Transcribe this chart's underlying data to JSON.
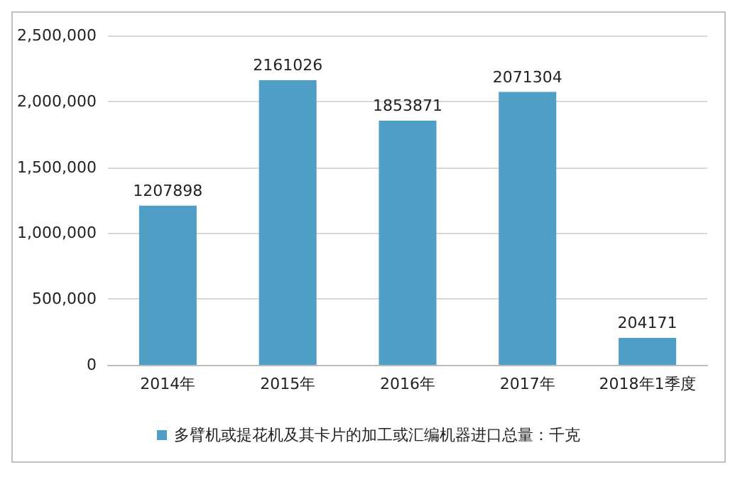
{
  "chart_data": {
    "type": "bar",
    "categories": [
      "2014年",
      "2015年",
      "2016年",
      "2017年",
      "2018年1季度"
    ],
    "series": [
      {
        "name": "多臂机或提花机及其卡片的加工或汇编机器进口总量：千克",
        "color": "#4f9ec6",
        "values": [
          1207898,
          2161026,
          1853871,
          2071304,
          204171
        ]
      }
    ],
    "ylim": [
      0,
      2500000
    ],
    "yticks": [
      0,
      {
        "value": 500000,
        "label": "500,000"
      },
      {
        "value": 1000000,
        "label": "1,000,000"
      },
      {
        "value": 1500000,
        "label": "1,500,000"
      },
      {
        "value": 2000000,
        "label": "2,000,000"
      },
      {
        "value": 2500000,
        "label": "2,500,000"
      }
    ],
    "grid": "y",
    "legend": "bottom",
    "data_labels": true
  }
}
